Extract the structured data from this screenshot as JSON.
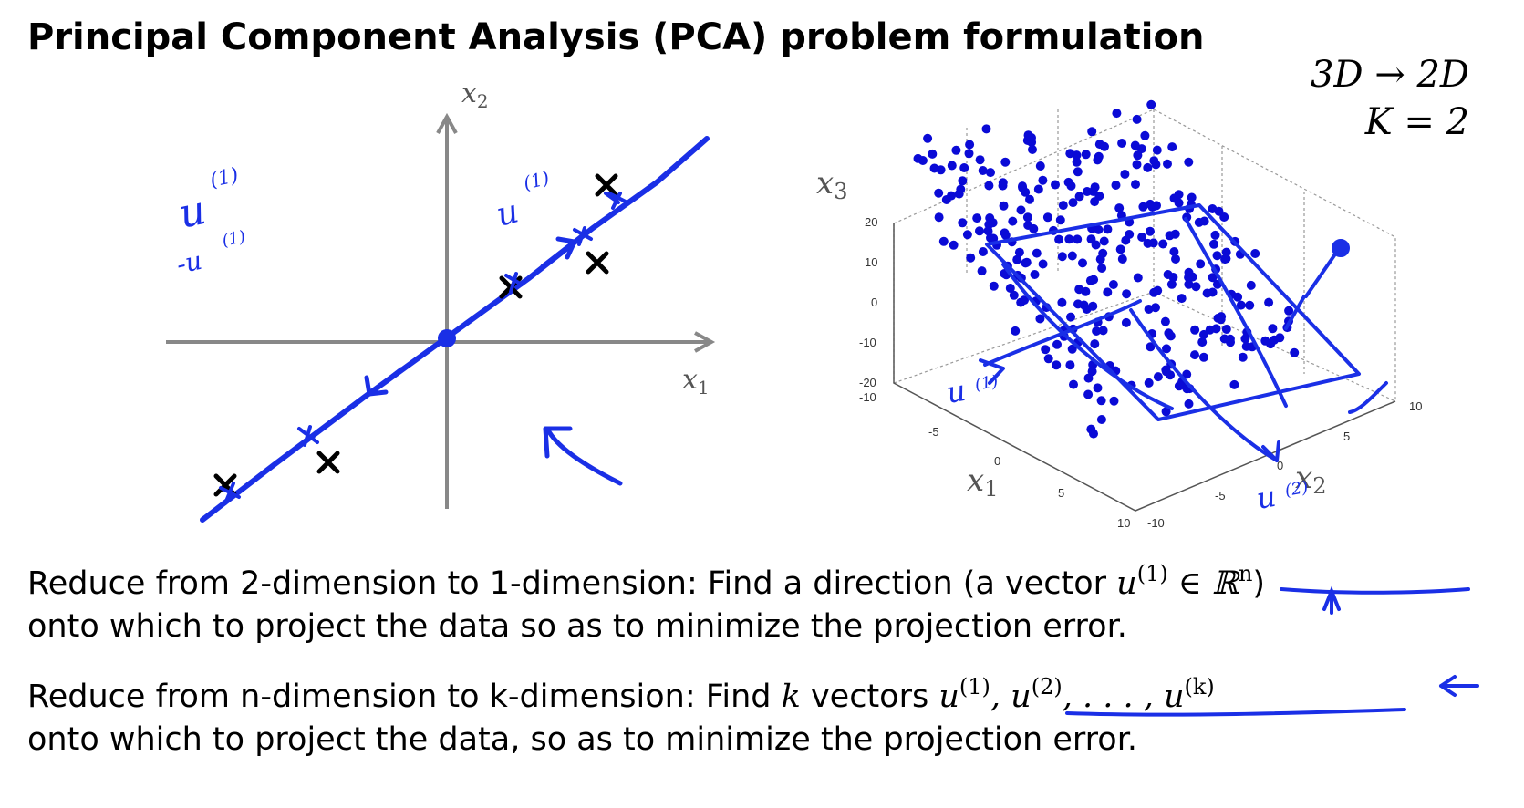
{
  "title": "Principal Component Analysis (PCA) problem formulation",
  "meta": {
    "dims": "3D → 2D",
    "k_eq": "K = 2"
  },
  "left_plot": {
    "x_label": "x",
    "x_sub": "1",
    "y_label": "x",
    "y_sub": "2",
    "annot_u": "u",
    "annot_u_sup": "(1)",
    "annot_neg_u": "-u",
    "annot_neg_sup": "(1)"
  },
  "right_plot": {
    "x1_label": "x",
    "x1_sub": "1",
    "x2_label": "x",
    "x2_sub": "2",
    "x3_label": "x",
    "x3_sub": "3",
    "z_ticks": [
      "20",
      "10",
      "0",
      "-10",
      "-20"
    ],
    "x1_ticks": [
      "-10",
      "-5",
      "0",
      "5",
      "10"
    ],
    "x2_ticks": [
      "-10",
      "-5",
      "0",
      "5",
      "10"
    ],
    "annot_u1": "u",
    "annot_u1_sup": "(1)",
    "annot_u2": "u",
    "annot_u2_sup": "(2)"
  },
  "text": {
    "line1_a": "Reduce from 2-dimension to 1-dimension: Find a direction (a vector ",
    "line1_math": "u",
    "line1_sup": "(1)",
    "line1_rest": " ∈ ℝ",
    "line1_sup2": "n",
    "line1_end": ")",
    "line2": "onto which to project the data so as to minimize the projection error.",
    "line3_a": "Reduce from n-dimension to k-dimension: Find ",
    "line3_k": "k",
    "line3_b": " vectors ",
    "line3_math": "u",
    "line3_s1": "(1)",
    "line3_c": ", u",
    "line3_s2": "(2)",
    "line3_d": ", . . . , u",
    "line3_s3": "(k)",
    "line4": "onto which to project the data, so as to minimize the projection error."
  },
  "colors": {
    "ink": "#1a2fe6",
    "axis": "#888888",
    "point": "#0a0ad6"
  }
}
